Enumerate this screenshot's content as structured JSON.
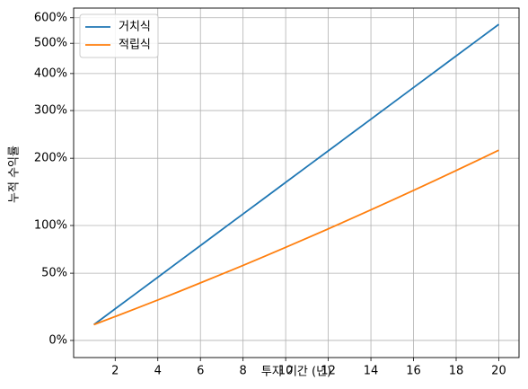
{
  "chart_data": {
    "type": "line",
    "xlabel": "투자 기간 (년)",
    "ylabel": "누적 수익률",
    "x": [
      1,
      2,
      3,
      4,
      5,
      6,
      7,
      8,
      9,
      10,
      11,
      12,
      13,
      14,
      15,
      16,
      17,
      18,
      19,
      20
    ],
    "series": [
      {
        "name": "거치식",
        "color": "#1f77b4",
        "values": [
          10,
          21,
          33.1,
          46.4,
          61.1,
          77.2,
          94.9,
          114.4,
          135.8,
          159.4,
          185.3,
          213.8,
          245.2,
          279.7,
          317.7,
          359.5,
          405.4,
          456.0,
          511.6,
          572.7
        ]
      },
      {
        "name": "적립식",
        "color": "#ff7f0e",
        "values": [
          10,
          15.5,
          21.4,
          27.6,
          34.3,
          41.5,
          49.1,
          57.2,
          66.0,
          75.3,
          85.3,
          96.0,
          107.5,
          119.8,
          133.0,
          147.2,
          162.3,
          178.7,
          196.2,
          215.0
        ]
      }
    ],
    "xlim": [
      0.05,
      20.95
    ],
    "xticks": [
      2,
      4,
      6,
      8,
      10,
      12,
      14,
      16,
      18,
      20
    ],
    "ylim": [
      -9.8,
      642
    ],
    "yscale": "log1p",
    "yticks": [
      {
        "value": 0,
        "label": "0%"
      },
      {
        "value": 50,
        "label": "50%"
      },
      {
        "value": 100,
        "label": "100%"
      },
      {
        "value": 200,
        "label": "200%"
      },
      {
        "value": 300,
        "label": "300%"
      },
      {
        "value": 400,
        "label": "400%"
      },
      {
        "value": 500,
        "label": "500%"
      },
      {
        "value": 600,
        "label": "600%"
      }
    ],
    "grid": true,
    "legend": "upper left"
  }
}
